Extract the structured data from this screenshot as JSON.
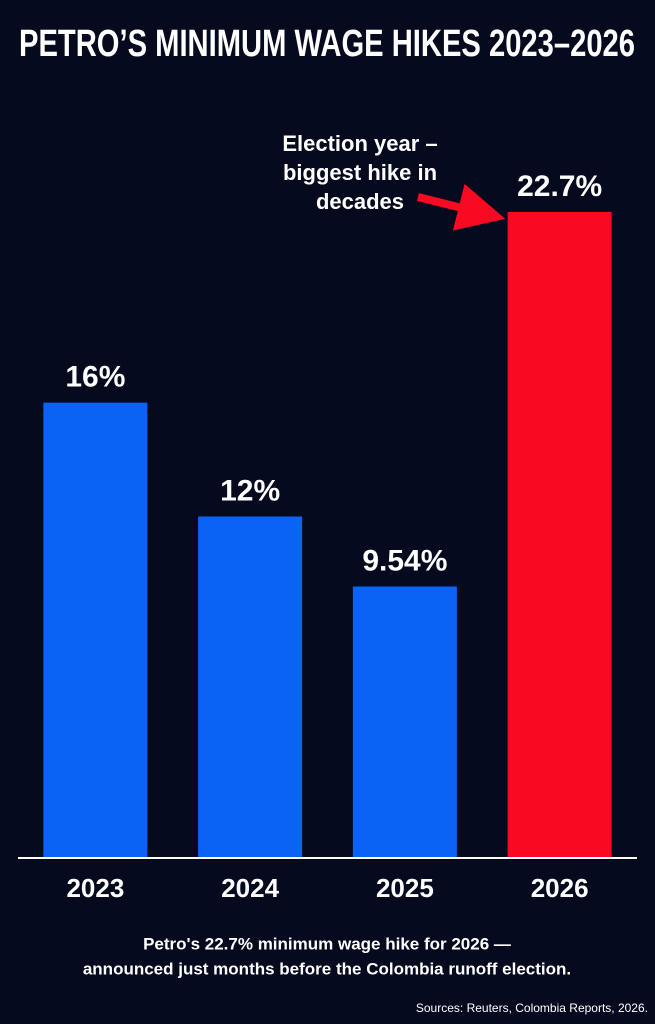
{
  "chart_data": {
    "type": "bar",
    "title": "PETRO’S MINIMUM WAGE HIKES 2023–2026",
    "categories": [
      "2023",
      "2024",
      "2025",
      "2026"
    ],
    "values": [
      16,
      12,
      9.54,
      22.7
    ],
    "value_labels": [
      "16%",
      "12%",
      "9.54%",
      "22.7%"
    ],
    "colors": [
      "#0b63f6",
      "#0b63f6",
      "#0b63f6",
      "#fa0a22"
    ],
    "ylim": [
      0,
      24
    ],
    "annotation": [
      "Election year –",
      "biggest hike in",
      "decades"
    ],
    "caption": [
      "Petro's 22.7% minimum wage hike for 2026 —",
      "announced just months before the Colombia runoff election."
    ],
    "source": "Sources: Reuters, Colombia Reports, 2026."
  }
}
